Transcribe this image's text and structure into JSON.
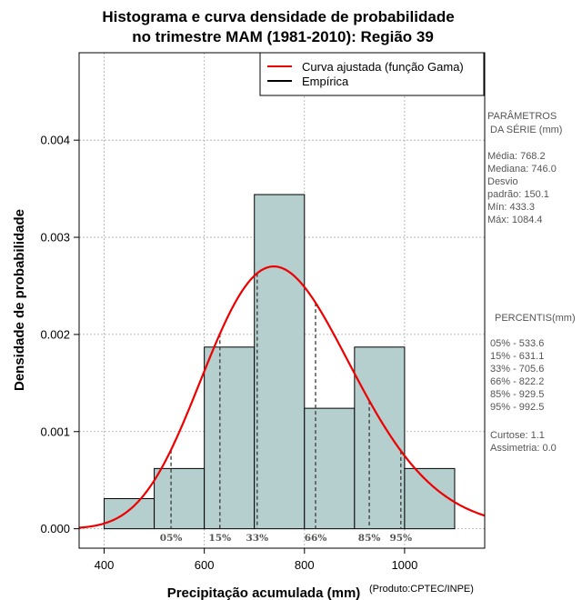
{
  "title_line1": "Histograma e curva densidade de probabilidade",
  "title_line2": "no trimestre MAM (1981-2010): Região 39",
  "credit": "(Produto:CPTEC/INPE)",
  "legend": {
    "fitted": "Curva ajustada (função Gama)",
    "empirical": "Empírica"
  },
  "side_panel": {
    "params_title_1": "PARÂMETROS",
    "params_title_2": "DA SÉRIE (mm)",
    "media": "Média:  768.2",
    "mediana": "Mediana:  746.0",
    "desvio_1": "Desvio",
    "desvio_2": "padrão:  150.1",
    "min": "Mín:  433.3",
    "max": "Máx:  1084.4",
    "pct_title": "PERCENTIS(mm)",
    "p05": "05% -  533.6",
    "p15": "15% -  631.1",
    "p33": "33% -  705.6",
    "p66": "66% -  822.2",
    "p85": "85% -  929.5",
    "p95": "95% -  992.5",
    "curtose": "Curtose:  1.1",
    "assimetria": "Assimetria:  0.0"
  },
  "colors": {
    "bar_fill": "#b5cece",
    "curve": "#ee0000",
    "grid": "#aaaaaa",
    "percentile_line": "#444444"
  },
  "chart_data": {
    "type": "histogram",
    "title": "Histograma e curva densidade de probabilidade no trimestre MAM (1981-2010): Região 39",
    "xlabel": "Precipitação acumulada (mm)",
    "ylabel": "Densidade de probabilidade",
    "xlim": [
      350,
      1160
    ],
    "ylim": [
      -0.0002,
      0.0049
    ],
    "xticks": [
      400,
      600,
      800,
      1000
    ],
    "yticks": [
      0.0,
      0.001,
      0.002,
      0.003,
      0.004
    ],
    "ytick_labels": [
      "0.000",
      "0.001",
      "0.002",
      "0.003",
      "0.004"
    ],
    "bins": [
      {
        "start": 400,
        "end": 500,
        "density": 0.00031
      },
      {
        "start": 500,
        "end": 600,
        "density": 0.00062
      },
      {
        "start": 600,
        "end": 700,
        "density": 0.00187
      },
      {
        "start": 700,
        "end": 800,
        "density": 0.00344
      },
      {
        "start": 800,
        "end": 900,
        "density": 0.00124
      },
      {
        "start": 900,
        "end": 1000,
        "density": 0.00187
      },
      {
        "start": 1000,
        "end": 1100,
        "density": 0.00062
      }
    ],
    "fitted_curve": {
      "distribution": "gamma",
      "mean": 768.2,
      "sd": 150.1,
      "peak_density": 0.0027
    },
    "percentiles": [
      {
        "label": "05%",
        "value": 533.6
      },
      {
        "label": "15%",
        "value": 631.1
      },
      {
        "label": "33%",
        "value": 705.6
      },
      {
        "label": "66%",
        "value": 822.2
      },
      {
        "label": "85%",
        "value": 929.5
      },
      {
        "label": "95%",
        "value": 992.5
      }
    ],
    "grid": true,
    "legend_position": "top-right"
  }
}
